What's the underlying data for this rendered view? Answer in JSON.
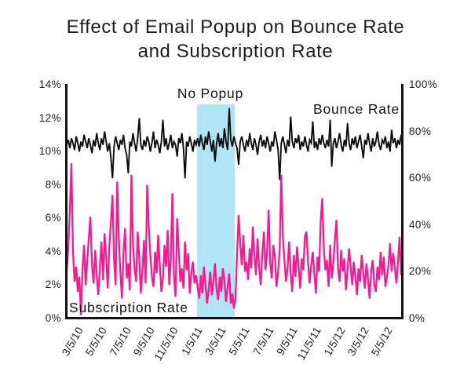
{
  "title": {
    "line1": "Effect of Email Popup on Bounce Rate",
    "line2": "and Subscription Rate"
  },
  "chart_data": {
    "type": "line",
    "title": "Effect of Email Popup on Bounce Rate and Subscription Rate",
    "grid": false,
    "legend": "inline-annotations",
    "x_ticks": [
      "3/5/10",
      "5/5/10",
      "7/5/10",
      "9/5/10",
      "11/5/10",
      "1/5/11",
      "3/5/11",
      "5/5/11",
      "7/5/11",
      "9/5/11",
      "11/5/11",
      "1/5/12",
      "3/5/12",
      "5/5/12"
    ],
    "left_axis": {
      "min": 0,
      "max": 14,
      "ticks": [
        "14%",
        "12%",
        "10%",
        "8%",
        "6%",
        "4%",
        "2%",
        "0%"
      ]
    },
    "right_axis": {
      "min": 0,
      "max": 100,
      "ticks": [
        "100%",
        "80%",
        "60%",
        "40%",
        "20%",
        "0%"
      ]
    },
    "highlight": {
      "label": "No Popup",
      "x_start_frac": 0.388,
      "x_end_frac": 0.5,
      "y_top_frac": 0.084,
      "color": "#b0e5f6"
    },
    "series": [
      {
        "name": "Bounce Rate",
        "axis": "right",
        "color": "#0c0c0c",
        "values": [
          74.3,
          76.4,
          72.9,
          77.1,
          75.0,
          72.1,
          77.9,
          75.0,
          71.4,
          75.7,
          73.6,
          78.6,
          75.7,
          72.9,
          77.1,
          74.3,
          70.7,
          76.4,
          73.6,
          79.3,
          75.0,
          72.1,
          77.1,
          74.3,
          80.0,
          75.7,
          71.4,
          75.0,
          68.6,
          60.0,
          73.6,
          77.9,
          75.0,
          72.1,
          76.4,
          74.3,
          78.6,
          72.9,
          70.0,
          62.1,
          75.7,
          73.6,
          79.3,
          75.0,
          71.4,
          77.1,
          85.7,
          74.3,
          72.1,
          76.4,
          73.6,
          77.9,
          75.7,
          71.4,
          75.0,
          80.0,
          72.9,
          76.4,
          74.3,
          70.7,
          75.7,
          85.0,
          73.6,
          77.1,
          72.1,
          75.0,
          78.6,
          72.9,
          75.7,
          74.3,
          69.3,
          77.1,
          75.0,
          79.3,
          72.9,
          60.0,
          75.7,
          73.6,
          77.9,
          75.0,
          71.4,
          76.4,
          74.3,
          77.1,
          73.6,
          78.6,
          75.0,
          72.1,
          77.9,
          74.3,
          80.0,
          75.7,
          71.4,
          76.4,
          67.1,
          75.0,
          79.3,
          73.6,
          77.1,
          72.9,
          81.4,
          75.7,
          72.1,
          90.0,
          76.4,
          73.6,
          77.9,
          75.0,
          72.9,
          65.7,
          75.7,
          77.9,
          74.3,
          71.4,
          76.4,
          73.6,
          79.3,
          75.0,
          72.1,
          77.1,
          74.3,
          70.0,
          75.7,
          78.6,
          73.6,
          76.4,
          72.9,
          77.9,
          75.0,
          71.4,
          75.7,
          73.6,
          80.0,
          76.4,
          72.1,
          59.3,
          75.0,
          77.9,
          74.3,
          70.7,
          76.4,
          73.6,
          86.4,
          75.7,
          72.9,
          77.1,
          75.0,
          78.6,
          72.1,
          75.7,
          73.6,
          77.9,
          74.3,
          71.4,
          76.4,
          75.0,
          84.3,
          72.9,
          75.7,
          72.1,
          77.1,
          74.3,
          78.6,
          75.0,
          72.9,
          76.4,
          73.6,
          85.0,
          65.0,
          75.0,
          77.1,
          72.9,
          75.7,
          79.3,
          74.3,
          71.4,
          76.4,
          73.6,
          83.6,
          75.0,
          72.1,
          77.1,
          74.3,
          77.9,
          72.9,
          75.7,
          78.6,
          73.6,
          68.6,
          76.4,
          74.3,
          79.3,
          75.0,
          71.4,
          77.1,
          73.6,
          75.7,
          80.0,
          74.3,
          72.1,
          76.4,
          75.0,
          77.9,
          72.9,
          75.7,
          71.4,
          80.7,
          75.0,
          77.1,
          72.9,
          76.4,
          74.3,
          78.6,
          75.7
        ]
      },
      {
        "name": "Subscription Rate",
        "axis": "left",
        "color": "#f9188f",
        "values": [
          2.8,
          4.2,
          6.5,
          9.3,
          4.0,
          2.2,
          3.1,
          1.6,
          2.5,
          0.2,
          2.9,
          4.4,
          2.0,
          3.4,
          4.8,
          6.1,
          3.2,
          2.1,
          4.1,
          2.6,
          1.4,
          3.0,
          4.6,
          2.3,
          5.1,
          3.7,
          1.8,
          4.3,
          5.8,
          7.4,
          3.5,
          2.0,
          8.2,
          4.9,
          2.8,
          1.2,
          3.9,
          5.4,
          2.4,
          3.3,
          1.7,
          8.6,
          4.5,
          3.0,
          2.2,
          5.2,
          3.6,
          1.5,
          2.9,
          4.7,
          2.1,
          8.0,
          5.6,
          3.8,
          2.5,
          1.9,
          4.0,
          2.7,
          5.0,
          3.2,
          1.6,
          2.4,
          4.4,
          3.1,
          5.3,
          2.0,
          3.5,
          7.5,
          2.6,
          1.3,
          6.0,
          4.1,
          2.2,
          3.0,
          1.8,
          4.6,
          2.9,
          3.9,
          1.5,
          2.7,
          3.4,
          2.1,
          2.6,
          1.9,
          1.2,
          2.6,
          1.5,
          3.1,
          2.0,
          0.9,
          1.7,
          2.8,
          1.4,
          2.2,
          3.3,
          1.8,
          1.1,
          2.5,
          1.6,
          3.0,
          2.3,
          1.0,
          1.9,
          2.7,
          0.9,
          1.5,
          0.6,
          1.2,
          3.9,
          6.2,
          4.5,
          3.2,
          5.0,
          2.8,
          3.4,
          2.3,
          4.2,
          3.0,
          5.5,
          3.8,
          2.6,
          4.8,
          3.1,
          2.0,
          3.9,
          5.2,
          2.9,
          4.0,
          6.5,
          3.3,
          2.4,
          4.4,
          3.7,
          1.9,
          2.8,
          4.1,
          8.6,
          5.0,
          3.5,
          2.2,
          3.0,
          4.6,
          2.7,
          1.6,
          3.8,
          2.5,
          4.3,
          3.1,
          1.8,
          3.6,
          2.9,
          4.9,
          5.2,
          3.4,
          2.1,
          3.2,
          4.0,
          2.6,
          1.5,
          3.7,
          2.8,
          5.8,
          7.2,
          4.2,
          2.9,
          3.5,
          1.9,
          4.4,
          2.4,
          3.3,
          4.7,
          5.9,
          3.0,
          2.2,
          4.1,
          2.8,
          3.6,
          1.7,
          2.9,
          4.2,
          3.1,
          2.0,
          3.4,
          2.5,
          1.4,
          3.0,
          2.2,
          3.8,
          2.7,
          1.8,
          3.3,
          2.4,
          1.2,
          2.8,
          3.5,
          2.0,
          1.6,
          3.1,
          2.3,
          4.0,
          2.6,
          3.7,
          1.9,
          2.5,
          3.2,
          4.5,
          2.8,
          3.9,
          3.0,
          2.1,
          3.4,
          4.9,
          2.6,
          3.8
        ]
      }
    ]
  }
}
